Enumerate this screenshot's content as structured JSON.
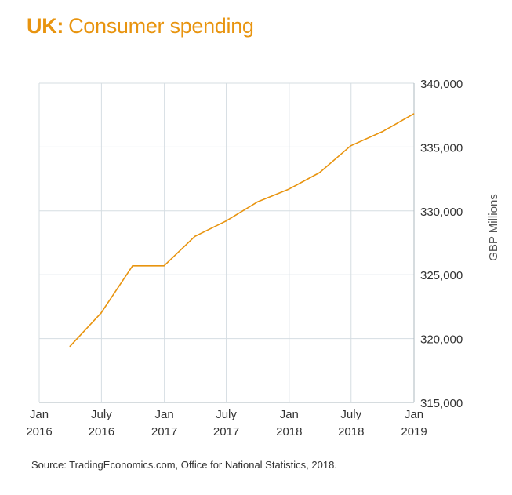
{
  "header": {
    "title_prefix": "UK:",
    "title_rest": "Consumer spending"
  },
  "footer": {
    "source": "Source: TradingEconomics.com, Office for National Statistics, 2018."
  },
  "colors": {
    "accent": "#e8940f",
    "line": "#e8940f",
    "grid": "#d5dde2",
    "text": "#333333"
  },
  "chart_data": {
    "type": "line",
    "title": "UK: Consumer spending",
    "xlabel": "",
    "ylabel": "GBP Millions",
    "grid": true,
    "y_axis_position": "right",
    "xlim": [
      "2016-01-01",
      "2019-01-01"
    ],
    "ylim": [
      315000,
      340000
    ],
    "x_ticks": [
      {
        "date": "2016-01-01",
        "line1": "Jan",
        "line2": "2016"
      },
      {
        "date": "2016-07-01",
        "line1": "July",
        "line2": "2016"
      },
      {
        "date": "2017-01-01",
        "line1": "Jan",
        "line2": "2017"
      },
      {
        "date": "2017-07-01",
        "line1": "July",
        "line2": "2017"
      },
      {
        "date": "2018-01-01",
        "line1": "Jan",
        "line2": "2018"
      },
      {
        "date": "2018-07-01",
        "line1": "July",
        "line2": "2018"
      },
      {
        "date": "2019-01-01",
        "line1": "Jan",
        "line2": "2019"
      }
    ],
    "y_ticks": [
      {
        "value": 315000,
        "label": "315,000"
      },
      {
        "value": 320000,
        "label": "320,000"
      },
      {
        "value": 325000,
        "label": "325,000"
      },
      {
        "value": 330000,
        "label": "330,000"
      },
      {
        "value": 335000,
        "label": "335,000"
      },
      {
        "value": 340000,
        "label": "340,000"
      }
    ],
    "series": [
      {
        "x": [
          "2016-03-31",
          "2016-06-30",
          "2016-09-30",
          "2016-12-31",
          "2017-03-31",
          "2017-06-30",
          "2017-09-30",
          "2017-12-31",
          "2018-03-31",
          "2018-06-30",
          "2018-09-30",
          "2018-12-31"
        ],
        "values": [
          319400,
          322000,
          325700,
          325700,
          328000,
          329200,
          330700,
          331700,
          333000,
          335100,
          336200,
          337600
        ]
      }
    ]
  }
}
